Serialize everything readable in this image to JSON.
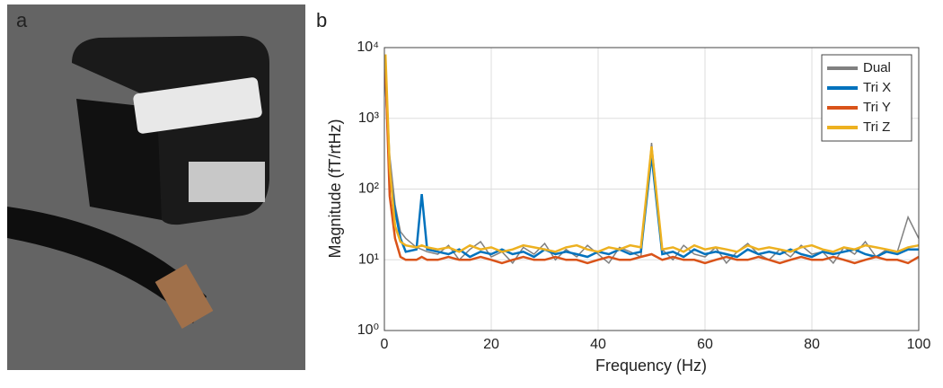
{
  "panels": {
    "a": "a",
    "b": "b"
  },
  "chart_data": {
    "type": "line",
    "xlabel": "Frequency (Hz)",
    "ylabel": "Magnitude (fT/rtHz)",
    "log_y": true,
    "grid": true,
    "legend": "upper right",
    "xlim": [
      0,
      100
    ],
    "xticks": [
      0,
      20,
      40,
      60,
      80,
      100
    ],
    "ylim": [
      1,
      10000
    ],
    "yticks": [
      {
        "value": 1,
        "label": "10⁰"
      },
      {
        "value": 10,
        "label": "10¹"
      },
      {
        "value": 100,
        "label": "10²"
      },
      {
        "value": 1000,
        "label": "10³"
      },
      {
        "value": 10000,
        "label": "10⁴"
      }
    ],
    "x": [
      0.2,
      1,
      2,
      3,
      4,
      6,
      7,
      8,
      10,
      12,
      14,
      16,
      18,
      20,
      22,
      24,
      26,
      28,
      30,
      32,
      34,
      36,
      38,
      40,
      42,
      44,
      46,
      48,
      50,
      52,
      54,
      56,
      58,
      60,
      62,
      64,
      66,
      68,
      70,
      72,
      74,
      76,
      78,
      80,
      82,
      84,
      86,
      88,
      90,
      92,
      94,
      96,
      98,
      100
    ],
    "series": [
      {
        "name": "Dual",
        "color": "#808080",
        "values": [
          6000,
          300,
          60,
          25,
          20,
          15,
          14,
          13,
          12,
          16,
          10,
          14,
          18,
          11,
          13,
          9,
          15,
          12,
          17,
          10,
          14,
          11,
          16,
          12,
          9,
          15,
          13,
          11,
          450,
          14,
          10,
          16,
          12,
          11,
          15,
          9,
          13,
          17,
          12,
          10,
          14,
          11,
          16,
          12,
          13,
          9,
          15,
          12,
          18,
          11,
          14,
          13,
          40,
          20
        ]
      },
      {
        "name": "Tri X",
        "color": "#0072bd",
        "values": [
          4000,
          150,
          50,
          20,
          13,
          14,
          85,
          14,
          13,
          12,
          14,
          11,
          13,
          12,
          14,
          12,
          13,
          11,
          14,
          12,
          13,
          12,
          11,
          13,
          12,
          14,
          12,
          13,
          300,
          12,
          13,
          11,
          14,
          12,
          13,
          12,
          11,
          14,
          12,
          13,
          12,
          14,
          12,
          11,
          13,
          12,
          13,
          14,
          12,
          11,
          13,
          12,
          14,
          14
        ]
      },
      {
        "name": "Tri Y",
        "color": "#d95319",
        "values": [
          5000,
          80,
          20,
          11,
          10,
          10,
          11,
          10,
          10,
          11,
          10,
          10,
          11,
          10,
          9,
          10,
          11,
          10,
          10,
          11,
          10,
          10,
          9,
          10,
          11,
          10,
          10,
          11,
          12,
          10,
          11,
          10,
          10,
          9,
          10,
          11,
          10,
          10,
          11,
          10,
          9,
          10,
          11,
          10,
          10,
          11,
          10,
          9,
          10,
          11,
          10,
          10,
          9,
          11
        ]
      },
      {
        "name": "Tri Z",
        "color": "#edb120",
        "values": [
          8000,
          200,
          30,
          18,
          16,
          15,
          16,
          15,
          14,
          15,
          13,
          16,
          14,
          15,
          13,
          14,
          16,
          15,
          14,
          13,
          15,
          16,
          14,
          13,
          15,
          14,
          16,
          15,
          400,
          14,
          15,
          13,
          16,
          14,
          15,
          14,
          13,
          16,
          14,
          15,
          14,
          13,
          15,
          16,
          14,
          13,
          15,
          14,
          16,
          15,
          14,
          13,
          15,
          16
        ]
      }
    ]
  }
}
